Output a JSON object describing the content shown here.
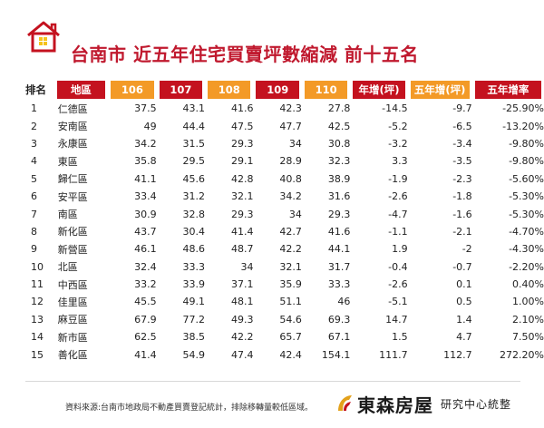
{
  "title": "台南市 近五年住宅買賣坪數縮減 前十五名",
  "headers": {
    "rank": "排名",
    "district": "地區",
    "y106": "106",
    "y107": "107",
    "y108": "108",
    "y109": "109",
    "y110": "110",
    "annual": "年增(坪)",
    "five_year": "五年增(坪)",
    "rate": "五年增率"
  },
  "rows": [
    {
      "rank": "1",
      "district": "仁德區",
      "y106": "37.5",
      "y107": "43.1",
      "y108": "41.6",
      "y109": "42.3",
      "y110": "27.8",
      "annual": "-14.5",
      "five_year": "-9.7",
      "rate": "-25.90%"
    },
    {
      "rank": "2",
      "district": "安南區",
      "y106": "49",
      "y107": "44.4",
      "y108": "47.5",
      "y109": "47.7",
      "y110": "42.5",
      "annual": "-5.2",
      "five_year": "-6.5",
      "rate": "-13.20%"
    },
    {
      "rank": "3",
      "district": "永康區",
      "y106": "34.2",
      "y107": "31.5",
      "y108": "29.3",
      "y109": "34",
      "y110": "30.8",
      "annual": "-3.2",
      "five_year": "-3.4",
      "rate": "-9.80%"
    },
    {
      "rank": "4",
      "district": "東區",
      "y106": "35.8",
      "y107": "29.5",
      "y108": "29.1",
      "y109": "28.9",
      "y110": "32.3",
      "annual": "3.3",
      "five_year": "-3.5",
      "rate": "-9.80%"
    },
    {
      "rank": "5",
      "district": "歸仁區",
      "y106": "41.1",
      "y107": "45.6",
      "y108": "42.8",
      "y109": "40.8",
      "y110": "38.9",
      "annual": "-1.9",
      "five_year": "-2.3",
      "rate": "-5.60%"
    },
    {
      "rank": "6",
      "district": "安平區",
      "y106": "33.4",
      "y107": "31.2",
      "y108": "32.1",
      "y109": "34.2",
      "y110": "31.6",
      "annual": "-2.6",
      "five_year": "-1.8",
      "rate": "-5.30%"
    },
    {
      "rank": "7",
      "district": "南區",
      "y106": "30.9",
      "y107": "32.8",
      "y108": "29.3",
      "y109": "34",
      "y110": "29.3",
      "annual": "-4.7",
      "five_year": "-1.6",
      "rate": "-5.30%"
    },
    {
      "rank": "8",
      "district": "新化區",
      "y106": "43.7",
      "y107": "30.4",
      "y108": "41.4",
      "y109": "42.7",
      "y110": "41.6",
      "annual": "-1.1",
      "five_year": "-2.1",
      "rate": "-4.70%"
    },
    {
      "rank": "9",
      "district": "新營區",
      "y106": "46.1",
      "y107": "48.6",
      "y108": "48.7",
      "y109": "42.2",
      "y110": "44.1",
      "annual": "1.9",
      "five_year": "-2",
      "rate": "-4.30%"
    },
    {
      "rank": "10",
      "district": "北區",
      "y106": "32.4",
      "y107": "33.3",
      "y108": "34",
      "y109": "32.1",
      "y110": "31.7",
      "annual": "-0.4",
      "five_year": "-0.7",
      "rate": "-2.20%"
    },
    {
      "rank": "11",
      "district": "中西區",
      "y106": "33.2",
      "y107": "33.9",
      "y108": "37.1",
      "y109": "35.9",
      "y110": "33.3",
      "annual": "-2.6",
      "five_year": "0.1",
      "rate": "0.40%"
    },
    {
      "rank": "12",
      "district": "佳里區",
      "y106": "45.5",
      "y107": "49.1",
      "y108": "48.1",
      "y109": "51.1",
      "y110": "46",
      "annual": "-5.1",
      "five_year": "0.5",
      "rate": "1.00%"
    },
    {
      "rank": "13",
      "district": "麻豆區",
      "y106": "67.9",
      "y107": "77.2",
      "y108": "49.3",
      "y109": "54.6",
      "y110": "69.3",
      "annual": "14.7",
      "five_year": "1.4",
      "rate": "2.10%"
    },
    {
      "rank": "14",
      "district": "新市區",
      "y106": "62.5",
      "y107": "38.5",
      "y108": "42.2",
      "y109": "65.7",
      "y110": "67.1",
      "annual": "1.5",
      "five_year": "4.7",
      "rate": "7.50%"
    },
    {
      "rank": "15",
      "district": "善化區",
      "y106": "41.4",
      "y107": "54.9",
      "y108": "47.4",
      "y109": "42.4",
      "y110": "154.1",
      "annual": "111.7",
      "five_year": "112.7",
      "rate": "272.20%"
    }
  ],
  "footer": {
    "source": "資料來源:台南市地政局不動產買賣登記統計，排除移轉量較低區域。",
    "brand_name": "東森房屋",
    "brand_sub": "研究中心統整"
  },
  "colors": {
    "red": "#c4121f",
    "orange": "#f39a27",
    "title": "#c0192e"
  },
  "icons": {
    "logo": "house-icon",
    "brand": "brand-mark-icon"
  }
}
